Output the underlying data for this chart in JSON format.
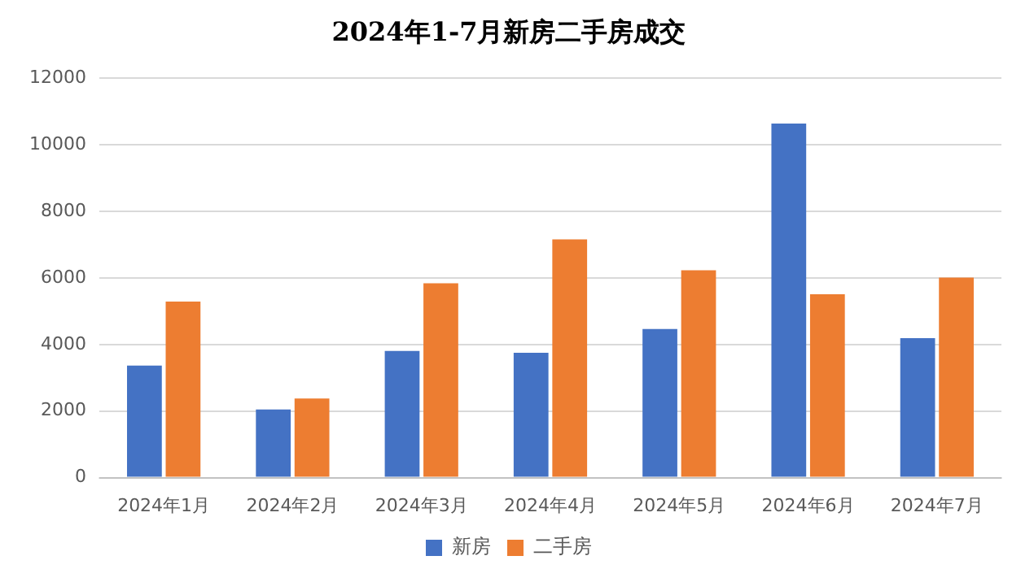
{
  "chart_data": {
    "type": "bar",
    "title": "2024年1-7月新房二手房成交",
    "categories": [
      "2024年1月",
      "2024年2月",
      "2024年3月",
      "2024年4月",
      "2024年5月",
      "2024年6月",
      "2024年7月"
    ],
    "series": [
      {
        "name": "新房",
        "color": "#4472c4",
        "values": [
          3370,
          2050,
          3810,
          3750,
          4470,
          10640,
          4190
        ]
      },
      {
        "name": "二手房",
        "color": "#ed7d31",
        "values": [
          5290,
          2380,
          5840,
          7160,
          6230,
          5510,
          6010
        ]
      }
    ],
    "ylim": [
      0,
      12000
    ],
    "yticks": [
      0,
      2000,
      4000,
      6000,
      8000,
      10000,
      12000
    ],
    "grid": "y",
    "legend": "bottom"
  }
}
